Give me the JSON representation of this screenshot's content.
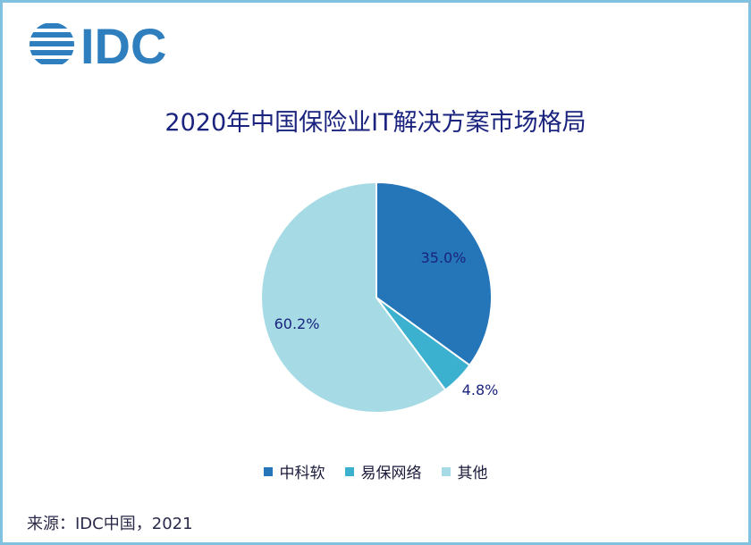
{
  "logo": {
    "text": "IDC",
    "color": "#2f7fbf"
  },
  "chart_data": {
    "type": "pie",
    "title": "2020年中国保险业IT解决方案市场格局",
    "slices": [
      {
        "label": "中科软",
        "value": 35.0,
        "value_label": "35.0%",
        "color": "#2575b9"
      },
      {
        "label": "易保网络",
        "value": 4.8,
        "value_label": "4.8%",
        "color": "#3bb1cf"
      },
      {
        "label": "其他",
        "value": 60.2,
        "value_label": "60.2%",
        "color": "#a6dbe6"
      }
    ],
    "legend_position": "bottom"
  },
  "source": "来源：IDC中国，2021"
}
